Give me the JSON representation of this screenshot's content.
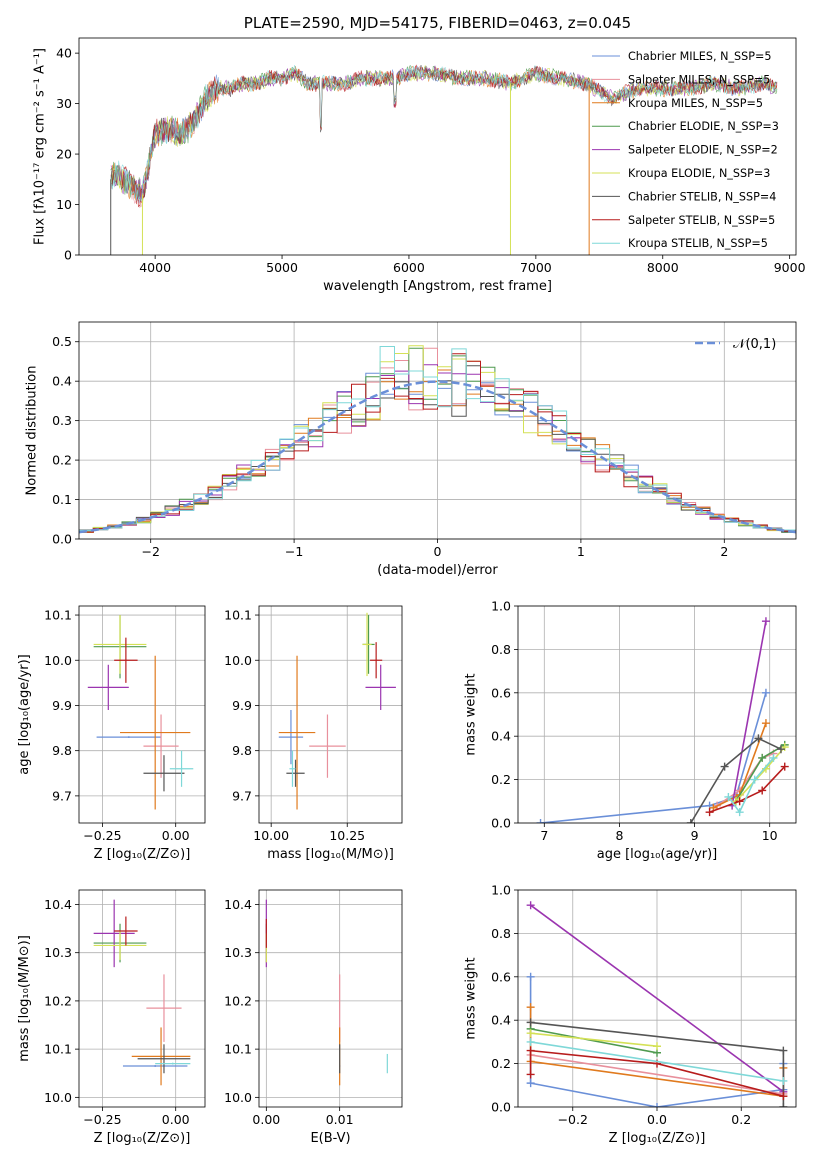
{
  "chart_data": [
    {
      "id": "spectrum",
      "type": "line",
      "title": "PLATE=2590, MJD=54175, FIBERID=0463, z=0.045",
      "xlabel": "wavelength [Angstrom, rest frame]",
      "ylabel": "Flux [fλ10⁻¹⁷ erg cm⁻² s⁻¹ A⁻¹]",
      "xlim": [
        3400,
        9050
      ],
      "ylim": [
        0,
        43
      ],
      "xticks": [
        4000,
        5000,
        6000,
        7000,
        8000,
        9000
      ],
      "yticks": [
        0,
        10,
        20,
        30,
        40
      ],
      "legend_position": "upper right",
      "continuum": {
        "x": [
          3650,
          3700,
          3800,
          3900,
          4000,
          4100,
          4200,
          4300,
          4400,
          4500,
          4600,
          4700,
          4800,
          4900,
          5000,
          5100,
          5200,
          5300,
          5400,
          5500,
          5600,
          5700,
          5800,
          5900,
          6000,
          6200,
          6400,
          6600,
          6800,
          7000,
          7200,
          7400,
          7600,
          7800,
          8000,
          8200,
          8400,
          8600,
          8800,
          8900
        ],
        "y": [
          15,
          16,
          14,
          12,
          24,
          25,
          24,
          26,
          31,
          33,
          33,
          34,
          34,
          35,
          35,
          36,
          34,
          34,
          34,
          34,
          35,
          35,
          35,
          35,
          36,
          36,
          35,
          35,
          34,
          36,
          35,
          34,
          31,
          33,
          33,
          33,
          34,
          33,
          34,
          33
        ]
      },
      "series": [
        {
          "name": "Chabrier MILES, N_SSP=5",
          "color": "#6a8fd8"
        },
        {
          "name": "Salpeter MILES, N_SSP=5",
          "color": "#e8909c"
        },
        {
          "name": "Kroupa MILES, N_SSP=5",
          "color": "#e07a1e"
        },
        {
          "name": "Chabrier ELODIE, N_SSP=3",
          "color": "#4f9a4f"
        },
        {
          "name": "Salpeter ELODIE, N_SSP=2",
          "color": "#9b35b0"
        },
        {
          "name": "Kroupa ELODIE, N_SSP=3",
          "color": "#d4e157"
        },
        {
          "name": "Chabrier STELIB, N_SSP=4",
          "color": "#555555"
        },
        {
          "name": "Salpeter STELIB, N_SSP=5",
          "color": "#b71c1c"
        },
        {
          "name": "Kroupa STELIB, N_SSP=5",
          "color": "#7fd8d8"
        }
      ]
    },
    {
      "id": "residuals",
      "type": "bar",
      "xlabel": "(data-model)/error",
      "ylabel": "Normed distribution",
      "xlim": [
        -2.5,
        2.5
      ],
      "ylim": [
        0,
        0.55
      ],
      "xticks": [
        -2,
        -1,
        0,
        1,
        2
      ],
      "yticks": [
        0.0,
        0.1,
        0.2,
        0.3,
        0.4,
        0.5
      ],
      "grid": true,
      "legend_position": "upper right",
      "reference_curve": {
        "label": "𝒩(0,1)",
        "color": "#6a8fd8",
        "style": "dashed"
      },
      "bin_width": 0.1
    },
    {
      "id": "age-vs-Z",
      "type": "scatter",
      "xlabel": "Z [log₁₀(Z/Z⊙)]",
      "ylabel": "age  [log₁₀(age/yr)]",
      "xlim": [
        -0.33,
        0.1
      ],
      "ylim": [
        9.64,
        10.12
      ],
      "xticks": [
        -0.25,
        0.0
      ],
      "yticks": [
        9.7,
        9.8,
        9.9,
        10.0,
        10.1
      ],
      "points": [
        {
          "x": -0.16,
          "y": 9.83,
          "xerr": 0.11,
          "yerr": 0.0,
          "color": "#6a8fd8"
        },
        {
          "x": -0.05,
          "y": 9.81,
          "xerr": 0.06,
          "yerr": 0.07,
          "color": "#e8909c"
        },
        {
          "x": -0.07,
          "y": 9.84,
          "xerr": 0.12,
          "yerr": 0.17,
          "color": "#e07a1e"
        },
        {
          "x": -0.19,
          "y": 10.03,
          "xerr": 0.09,
          "yerr": 0.07,
          "color": "#4f9a4f"
        },
        {
          "x": -0.23,
          "y": 9.94,
          "xerr": 0.07,
          "yerr": 0.05,
          "color": "#9b35b0"
        },
        {
          "x": -0.19,
          "y": 10.035,
          "xerr": 0.09,
          "yerr": 0.065,
          "color": "#d4e157"
        },
        {
          "x": -0.04,
          "y": 9.75,
          "xerr": 0.07,
          "yerr": 0.04,
          "color": "#555555"
        },
        {
          "x": -0.17,
          "y": 10.0,
          "xerr": 0.04,
          "yerr": 0.05,
          "color": "#b71c1c"
        },
        {
          "x": 0.02,
          "y": 9.76,
          "xerr": 0.04,
          "yerr": 0.04,
          "color": "#7fd8d8"
        }
      ]
    },
    {
      "id": "age-vs-mass",
      "type": "scatter",
      "xlabel": "mass [log₁₀(M/M⊙)]",
      "ylabel": "",
      "xlim": [
        9.96,
        10.43
      ],
      "ylim": [
        9.64,
        10.12
      ],
      "xticks": [
        10.0,
        10.25
      ],
      "yticks": [
        9.7,
        9.8,
        9.9,
        10.0,
        10.1
      ],
      "points": [
        {
          "x": 10.065,
          "y": 9.83,
          "xerr": 0.04,
          "yerr": 0.06,
          "color": "#6a8fd8"
        },
        {
          "x": 10.185,
          "y": 9.81,
          "xerr": 0.06,
          "yerr": 0.07,
          "color": "#e8909c"
        },
        {
          "x": 10.085,
          "y": 9.84,
          "xerr": 0.06,
          "yerr": 0.17,
          "color": "#e07a1e"
        },
        {
          "x": 10.32,
          "y": 10.035,
          "xerr": 0.02,
          "yerr": 0.065,
          "color": "#4f9a4f"
        },
        {
          "x": 10.36,
          "y": 9.94,
          "xerr": 0.05,
          "yerr": 0.05,
          "color": "#9b35b0"
        },
        {
          "x": 10.315,
          "y": 10.035,
          "xerr": 0.015,
          "yerr": 0.07,
          "color": "#d4e157"
        },
        {
          "x": 10.08,
          "y": 9.75,
          "xerr": 0.03,
          "yerr": 0.03,
          "color": "#555555"
        },
        {
          "x": 10.345,
          "y": 10.0,
          "xerr": 0.02,
          "yerr": 0.04,
          "color": "#b71c1c"
        },
        {
          "x": 10.07,
          "y": 9.76,
          "xerr": 0.01,
          "yerr": 0.04,
          "color": "#7fd8d8"
        }
      ]
    },
    {
      "id": "weight-vs-age",
      "type": "line",
      "xlabel": "age  [log₁₀(age/yr)]",
      "ylabel": "mass weight",
      "xlim": [
        6.65,
        10.35
      ],
      "ylim": [
        0,
        1
      ],
      "xticks": [
        7,
        8,
        9,
        10
      ],
      "yticks": [
        0.0,
        0.2,
        0.4,
        0.6,
        0.8,
        1.0
      ],
      "grid": true,
      "series": [
        {
          "color": "#6a8fd8",
          "x": [
            6.95,
            9.2,
            9.55,
            9.95
          ],
          "y": [
            0.0,
            0.08,
            0.12,
            0.6
          ]
        },
        {
          "color": "#e8909c",
          "x": [
            9.3,
            9.6,
            9.9,
            10.05
          ],
          "y": [
            0.08,
            0.15,
            0.3,
            0.32
          ]
        },
        {
          "color": "#e07a1e",
          "x": [
            9.25,
            9.6,
            9.95
          ],
          "y": [
            0.07,
            0.13,
            0.46
          ]
        },
        {
          "color": "#4f9a4f",
          "x": [
            9.55,
            9.9,
            10.2
          ],
          "y": [
            0.1,
            0.3,
            0.36
          ]
        },
        {
          "color": "#9b35b0",
          "x": [
            9.5,
            9.95
          ],
          "y": [
            0.08,
            0.93
          ]
        },
        {
          "color": "#d4e157",
          "x": [
            9.55,
            9.95,
            10.2
          ],
          "y": [
            0.1,
            0.25,
            0.35
          ]
        },
        {
          "color": "#555555",
          "x": [
            8.95,
            9.4,
            9.85,
            10.15
          ],
          "y": [
            0.0,
            0.26,
            0.39,
            0.34
          ]
        },
        {
          "color": "#b71c1c",
          "x": [
            9.2,
            9.6,
            9.9,
            10.2
          ],
          "y": [
            0.05,
            0.1,
            0.15,
            0.26
          ]
        },
        {
          "color": "#7fd8d8",
          "x": [
            9.45,
            9.6,
            9.8,
            10.05
          ],
          "y": [
            0.12,
            0.05,
            0.2,
            0.3
          ]
        }
      ]
    },
    {
      "id": "mass-vs-Z",
      "type": "scatter",
      "xlabel": "Z [log₁₀(Z/Z⊙)]",
      "ylabel": "mass [log₁₀(M/M⊙)]",
      "xlim": [
        -0.33,
        0.1
      ],
      "ylim": [
        9.98,
        10.43
      ],
      "xticks": [
        -0.25,
        0.0
      ],
      "yticks": [
        10.0,
        10.1,
        10.2,
        10.3,
        10.4
      ],
      "points": [
        {
          "x": -0.07,
          "y": 10.065,
          "xerr": 0.11,
          "yerr": 0.0,
          "color": "#6a8fd8"
        },
        {
          "x": -0.04,
          "y": 10.185,
          "xerr": 0.06,
          "yerr": 0.07,
          "color": "#e8909c"
        },
        {
          "x": -0.05,
          "y": 10.085,
          "xerr": 0.1,
          "yerr": 0.06,
          "color": "#e07a1e"
        },
        {
          "x": -0.19,
          "y": 10.32,
          "xerr": 0.09,
          "yerr": 0.04,
          "color": "#4f9a4f"
        },
        {
          "x": -0.21,
          "y": 10.34,
          "xerr": 0.07,
          "yerr": 0.07,
          "color": "#9b35b0"
        },
        {
          "x": -0.19,
          "y": 10.315,
          "xerr": 0.09,
          "yerr": 0.03,
          "color": "#d4e157"
        },
        {
          "x": -0.04,
          "y": 10.08,
          "xerr": 0.09,
          "yerr": 0.03,
          "color": "#555555"
        },
        {
          "x": -0.17,
          "y": 10.345,
          "xerr": 0.04,
          "yerr": 0.03,
          "color": "#b71c1c"
        },
        {
          "x": -0.01,
          "y": 10.07,
          "xerr": 0.06,
          "yerr": 0.0,
          "color": "#7fd8d8"
        }
      ]
    },
    {
      "id": "mass-vs-EBV",
      "type": "scatter",
      "xlabel": "E(B-V)",
      "ylabel": "",
      "xlim": [
        -0.001,
        0.0185
      ],
      "ylim": [
        9.98,
        10.43
      ],
      "xticks": [
        0.0,
        0.01
      ],
      "yticks": [
        10.0,
        10.1,
        10.2,
        10.3,
        10.4
      ],
      "points": [
        {
          "x": 0.01,
          "y": 10.065,
          "xerr": 0,
          "yerr": 0.0,
          "color": "#6a8fd8"
        },
        {
          "x": 0.01,
          "y": 10.185,
          "xerr": 0,
          "yerr": 0.07,
          "color": "#e8909c"
        },
        {
          "x": 0.01,
          "y": 10.085,
          "xerr": 0,
          "yerr": 0.06,
          "color": "#e07a1e"
        },
        {
          "x": 0.0,
          "y": 10.32,
          "xerr": 0,
          "yerr": 0.04,
          "color": "#4f9a4f"
        },
        {
          "x": 0.0,
          "y": 10.34,
          "xerr": 0,
          "yerr": 0.07,
          "color": "#9b35b0"
        },
        {
          "x": 0.0,
          "y": 10.31,
          "xerr": 0,
          "yerr": 0.03,
          "color": "#d4e157"
        },
        {
          "x": 0.01,
          "y": 10.08,
          "xerr": 0,
          "yerr": 0.03,
          "color": "#555555"
        },
        {
          "x": 0.0,
          "y": 10.34,
          "xerr": 0,
          "yerr": 0.03,
          "color": "#b71c1c"
        },
        {
          "x": 0.0165,
          "y": 10.07,
          "xerr": 0,
          "yerr": 0.02,
          "color": "#7fd8d8"
        }
      ]
    },
    {
      "id": "weight-vs-Z",
      "type": "line",
      "xlabel": "Z [log₁₀(Z/Z⊙)]",
      "ylabel": "mass weight",
      "xlim": [
        -0.33,
        0.33
      ],
      "ylim": [
        0,
        1
      ],
      "xticks": [
        -0.2,
        0.0,
        0.2
      ],
      "yticks": [
        0.0,
        0.2,
        0.4,
        0.6,
        0.8,
        1.0
      ],
      "grid": true,
      "series": [
        {
          "color": "#6a8fd8",
          "x": [
            -0.3,
            -0.3,
            0.0,
            0.3,
            0.3
          ],
          "y": [
            0.6,
            0.11,
            0.0,
            0.08,
            0.2
          ]
        },
        {
          "color": "#e8909c",
          "x": [
            -0.3,
            0.3
          ],
          "y": [
            0.24,
            0.06
          ]
        },
        {
          "color": "#e07a1e",
          "x": [
            -0.3,
            -0.3,
            0.3,
            0.3
          ],
          "y": [
            0.46,
            0.21,
            0.05,
            0.18
          ]
        },
        {
          "color": "#4f9a4f",
          "x": [
            -0.3,
            0.0
          ],
          "y": [
            0.36,
            0.25
          ]
        },
        {
          "color": "#9b35b0",
          "x": [
            -0.3,
            0.3
          ],
          "y": [
            0.93,
            0.07
          ]
        },
        {
          "color": "#d4e157",
          "x": [
            -0.3,
            0.0
          ],
          "y": [
            0.34,
            0.28
          ]
        },
        {
          "color": "#555555",
          "x": [
            -0.3,
            0.3,
            0.3
          ],
          "y": [
            0.39,
            0.26,
            0.0
          ]
        },
        {
          "color": "#b71c1c",
          "x": [
            -0.3,
            -0.3,
            0.0,
            0.3
          ],
          "y": [
            0.15,
            0.26,
            0.2,
            0.05
          ]
        },
        {
          "color": "#7fd8d8",
          "x": [
            -0.3,
            0.3
          ],
          "y": [
            0.3,
            0.12
          ]
        }
      ]
    }
  ]
}
